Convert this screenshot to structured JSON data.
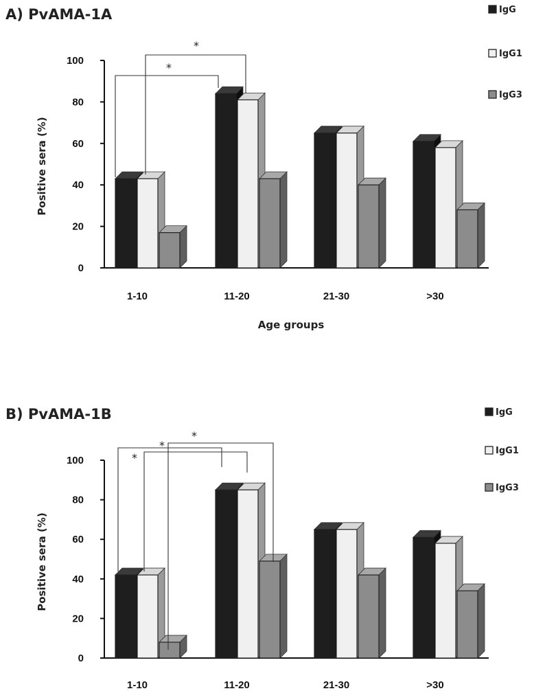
{
  "colors": {
    "IgG": "#1e1e1e",
    "IgG1": "#f0f0f0",
    "IgG3": "#8c8c8c"
  },
  "chart_data": [
    {
      "type": "bar",
      "title": "A) PvAMA-1A",
      "categories": [
        "1-10",
        "11-20",
        "21-30",
        ">30"
      ],
      "series": [
        {
          "name": "IgG",
          "values": [
            43,
            84,
            65,
            61
          ]
        },
        {
          "name": "IgG1",
          "values": [
            43,
            81,
            65,
            58
          ]
        },
        {
          "name": "IgG3",
          "values": [
            17,
            43,
            40,
            28
          ]
        }
      ],
      "xlabel": "Age groups",
      "ylabel": "Positive sera (%)",
      "ylim": [
        0,
        100
      ],
      "yticks": [
        "0",
        "20",
        "40",
        "60",
        "80",
        "100"
      ],
      "legend_position": "top-right",
      "significance_marker": "*"
    },
    {
      "type": "bar",
      "title": "B) PvAMA-1B",
      "categories": [
        "1-10",
        "11-20",
        "21-30",
        ">30"
      ],
      "series": [
        {
          "name": "IgG",
          "values": [
            42,
            85,
            65,
            61
          ]
        },
        {
          "name": "IgG1",
          "values": [
            42,
            85,
            65,
            58
          ]
        },
        {
          "name": "IgG3",
          "values": [
            8,
            49,
            42,
            34
          ]
        }
      ],
      "xlabel": "",
      "ylabel": "Positive sera (%)",
      "ylim": [
        0,
        100
      ],
      "yticks": [
        "0",
        "20",
        "40",
        "60",
        "80",
        "100"
      ],
      "legend_position": "top-right",
      "significance_marker": "*"
    }
  ]
}
